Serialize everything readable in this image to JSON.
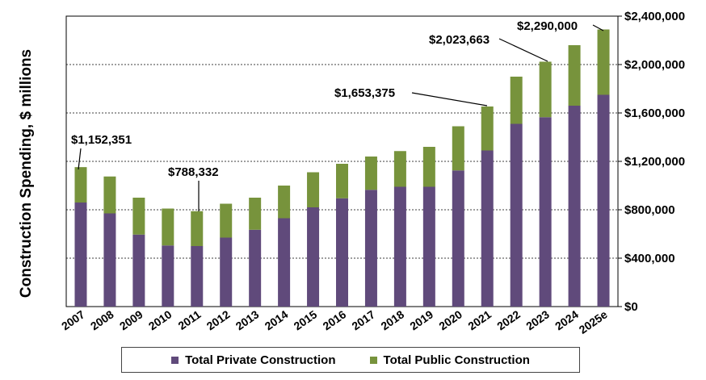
{
  "chart_data": {
    "type": "bar",
    "stacked": true,
    "title": "",
    "ylabel": "Construction Spending, $ millions",
    "xlabel": "",
    "ylim": [
      0,
      2400000
    ],
    "yticks": [
      0,
      400000,
      800000,
      1200000,
      1600000,
      2000000,
      2400000
    ],
    "ytick_labels": [
      "$0",
      "$400,000",
      "$800,000",
      "$1,200,000",
      "$1,600,000",
      "$2,000,000",
      "$2,400,000"
    ],
    "y_axis_side": "right",
    "grid": "horizontal dashed",
    "categories": [
      "2007",
      "2008",
      "2009",
      "2010",
      "2011",
      "2012",
      "2013",
      "2014",
      "2015",
      "2016",
      "2017",
      "2018",
      "2019",
      "2020",
      "2021",
      "2022",
      "2023",
      "2024",
      "2025e"
    ],
    "series": [
      {
        "name": "Total Private Construction",
        "color": "#604a7b",
        "values": [
          860000,
          770000,
          595000,
          505000,
          500000,
          570000,
          635000,
          730000,
          820000,
          895000,
          965000,
          990000,
          990000,
          1125000,
          1290000,
          1510000,
          1565000,
          1660000,
          1750000
        ]
      },
      {
        "name": "Total Public Construction",
        "color": "#77933c",
        "values": [
          292351,
          305000,
          305000,
          305000,
          288332,
          280000,
          265000,
          270000,
          290000,
          285000,
          275000,
          295000,
          330000,
          365000,
          363375,
          390000,
          458663,
          500000,
          540000
        ]
      }
    ],
    "annotations": [
      {
        "text": "$1,152,351",
        "category": "2007",
        "value": 1152351
      },
      {
        "text": "$788,332",
        "category": "2011",
        "value": 788332
      },
      {
        "text": "$1,653,375",
        "category": "2021",
        "value": 1653375
      },
      {
        "text": "$2,023,663",
        "category": "2023",
        "value": 2023663
      },
      {
        "text": "$2,290,000",
        "category": "2025e",
        "value": 2290000
      }
    ],
    "legend_position": "bottom"
  }
}
